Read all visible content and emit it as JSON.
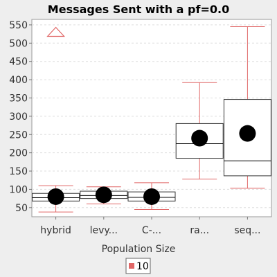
{
  "chart_data": {
    "type": "boxplot",
    "title": "Messages Sent  with a pf=0.0",
    "xlabel": "Population Size",
    "ylabel": "",
    "ylim": [
      25,
      565
    ],
    "yticks": [
      50,
      100,
      150,
      200,
      250,
      300,
      350,
      400,
      450,
      500,
      550
    ],
    "grid": true,
    "categories": [
      "hybrid",
      "levy...",
      "C-...",
      "ra...",
      "seq..."
    ],
    "series": [
      {
        "name": "10",
        "color": "#e06666",
        "boxes": [
          {
            "whisker_low": 38,
            "q1": 68,
            "median": 77,
            "q3": 89,
            "whisker_high": 110,
            "mean": 80,
            "outliers": [
              530
            ]
          },
          {
            "whisker_low": 60,
            "q1": 75,
            "median": 83,
            "q3": 95,
            "whisker_high": 107,
            "mean": 85,
            "outliers": []
          },
          {
            "whisker_low": 45,
            "q1": 68,
            "median": 78,
            "q3": 93,
            "whisker_high": 118,
            "mean": 80,
            "outliers": []
          },
          {
            "whisker_low": 128,
            "q1": 185,
            "median": 225,
            "q3": 280,
            "whisker_high": 392,
            "mean": 240,
            "outliers": []
          },
          {
            "whisker_low": 103,
            "q1": 137,
            "median": 178,
            "q3": 346,
            "whisker_high": 545,
            "mean": 253,
            "outliers": []
          }
        ]
      }
    ],
    "legend_position": "bottom"
  }
}
